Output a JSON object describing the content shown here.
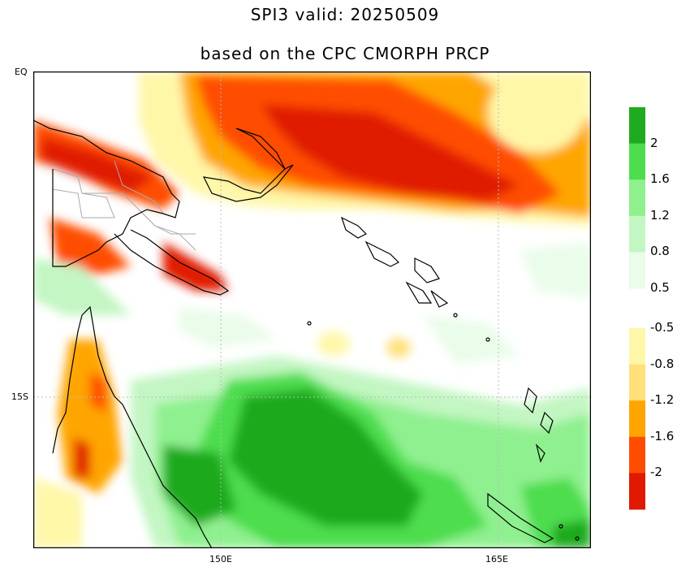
{
  "title": {
    "line1": "SPI3  valid: 20250509",
    "line2": "based on the CPC CMORPH PRCP"
  },
  "axes": {
    "y_ticks": [
      "EQ",
      "15S"
    ],
    "x_ticks": [
      "150E",
      "165E"
    ]
  },
  "legend": {
    "colors": [
      "#1faa1f",
      "#4ddd4d",
      "#8ff08f",
      "#c3f6c3",
      "#eafcea",
      "#ffffff",
      "#fff7a8",
      "#ffe07a",
      "#ffa500",
      "#ff4d00",
      "#e01a00"
    ],
    "labels": [
      "2",
      "1.6",
      "1.2",
      "0.8",
      "0.5",
      "-0.5",
      "-0.8",
      "-1.2",
      "-1.6",
      "-2"
    ]
  },
  "colors": {
    "coastline": "#000000",
    "border": "#aaaaaa",
    "grid": "#bbbbbb"
  }
}
